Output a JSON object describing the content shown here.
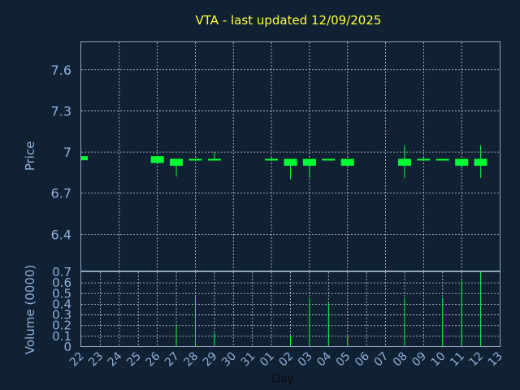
{
  "chart_data": {
    "type": "candlestick",
    "title": "VTA - last updated 12/09/2025",
    "xlabel": "Day",
    "price_panel": {
      "ylabel": "Price",
      "ylim": [
        6.13,
        7.8
      ],
      "yticks": [
        "6.4",
        "6.7",
        "7",
        "7.3",
        "7.6"
      ],
      "grid": true
    },
    "volume_panel": {
      "ylabel": "Volume (0000)",
      "ylim": [
        0,
        0.7
      ],
      "yticks": [
        "0",
        "0.1",
        "0.2",
        "0.3",
        "0.4",
        "0.5",
        "0.6",
        "0.7"
      ],
      "grid": true
    },
    "x_ticks": [
      "22",
      "23",
      "24",
      "25",
      "26",
      "27",
      "28",
      "29",
      "30",
      "31",
      "01",
      "02",
      "03",
      "04",
      "05",
      "06",
      "07",
      "08",
      "09",
      "10",
      "11",
      "12",
      "13"
    ],
    "candles": [
      {
        "day": "22",
        "open": 6.97,
        "close": 6.94,
        "high": 6.97,
        "low": 6.94,
        "volume": 0.0
      },
      {
        "day": "26",
        "open": 6.97,
        "close": 6.92,
        "high": 6.97,
        "low": 6.92,
        "volume": 0.0
      },
      {
        "day": "27",
        "open": 6.95,
        "close": 6.9,
        "high": 6.95,
        "low": 6.82,
        "volume": 0.2
      },
      {
        "day": "28",
        "open": 6.95,
        "close": 6.94,
        "high": 6.95,
        "low": 6.94,
        "volume": 0.47
      },
      {
        "day": "29",
        "open": 6.95,
        "close": 6.94,
        "high": 7.0,
        "low": 6.94,
        "volume": 0.13
      },
      {
        "day": "01",
        "open": 6.95,
        "close": 6.94,
        "high": 6.96,
        "low": 6.94,
        "volume": 0.0
      },
      {
        "day": "02",
        "open": 6.95,
        "close": 6.9,
        "high": 6.95,
        "low": 6.8,
        "volume": 0.1
      },
      {
        "day": "03",
        "open": 6.95,
        "close": 6.9,
        "high": 6.95,
        "low": 6.81,
        "volume": 0.46
      },
      {
        "day": "04",
        "open": 6.95,
        "close": 6.94,
        "high": 6.95,
        "low": 6.94,
        "volume": 0.42
      },
      {
        "day": "05",
        "open": 6.95,
        "close": 6.9,
        "high": 6.95,
        "low": 6.9,
        "volume": 0.1
      },
      {
        "day": "08",
        "open": 6.95,
        "close": 6.9,
        "high": 7.05,
        "low": 6.81,
        "volume": 0.46
      },
      {
        "day": "09",
        "open": 6.95,
        "close": 6.94,
        "high": 6.97,
        "low": 6.94,
        "volume": 0.0
      },
      {
        "day": "10",
        "open": 6.95,
        "close": 6.94,
        "high": 6.95,
        "low": 6.94,
        "volume": 0.46
      },
      {
        "day": "11",
        "open": 6.95,
        "close": 6.9,
        "high": 6.95,
        "low": 6.88,
        "volume": 0.62
      },
      {
        "day": "12",
        "open": 6.95,
        "close": 6.9,
        "high": 7.05,
        "low": 6.81,
        "volume": 0.7
      }
    ],
    "colors": {
      "background": "#0f2133",
      "candle": "#00ff33",
      "title": "#ffff33",
      "axis_text": "#8fb0d6"
    }
  }
}
